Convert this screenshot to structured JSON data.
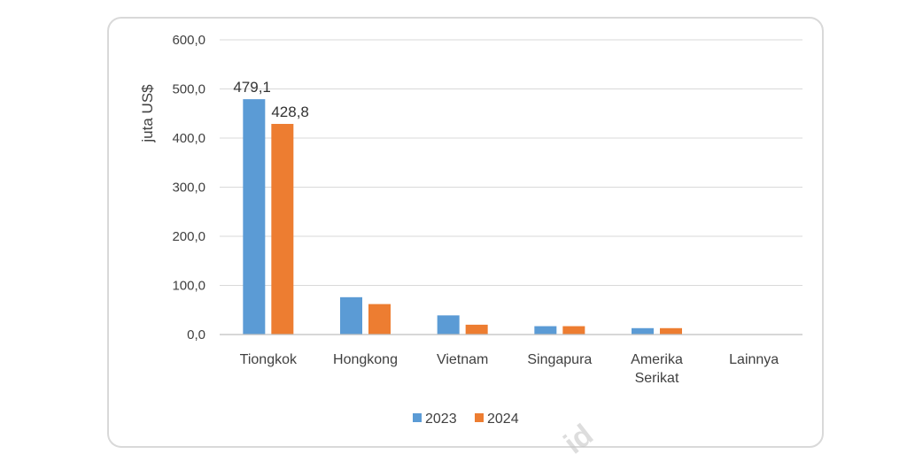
{
  "chart_data": {
    "type": "bar",
    "ylabel": "juta US$",
    "ylim": [
      0,
      600
    ],
    "yticks": [
      0,
      100,
      200,
      300,
      400,
      500,
      600
    ],
    "ytick_labels": [
      "0,0",
      "100,0",
      "200,0",
      "300,0",
      "400,0",
      "500,0",
      "600,0"
    ],
    "categories": [
      [
        "Tiongkok"
      ],
      [
        "Hongkong"
      ],
      [
        "Vietnam"
      ],
      [
        "Singapura"
      ],
      [
        "Amerika",
        "Serikat"
      ],
      [
        "Lainnya"
      ]
    ],
    "series": [
      {
        "name": "2023",
        "color": "#5b9bd5",
        "values": [
          479.1,
          76,
          39,
          17,
          13,
          0
        ]
      },
      {
        "name": "2024",
        "color": "#ed7d31",
        "values": [
          428.8,
          62,
          20,
          17,
          13,
          0
        ]
      }
    ],
    "data_labels": [
      {
        "series": 0,
        "category": 0,
        "text": "479,1"
      },
      {
        "series": 1,
        "category": 0,
        "text": "428,8"
      }
    ],
    "grid": true,
    "legend": "bottom-center"
  },
  "watermark": "id"
}
